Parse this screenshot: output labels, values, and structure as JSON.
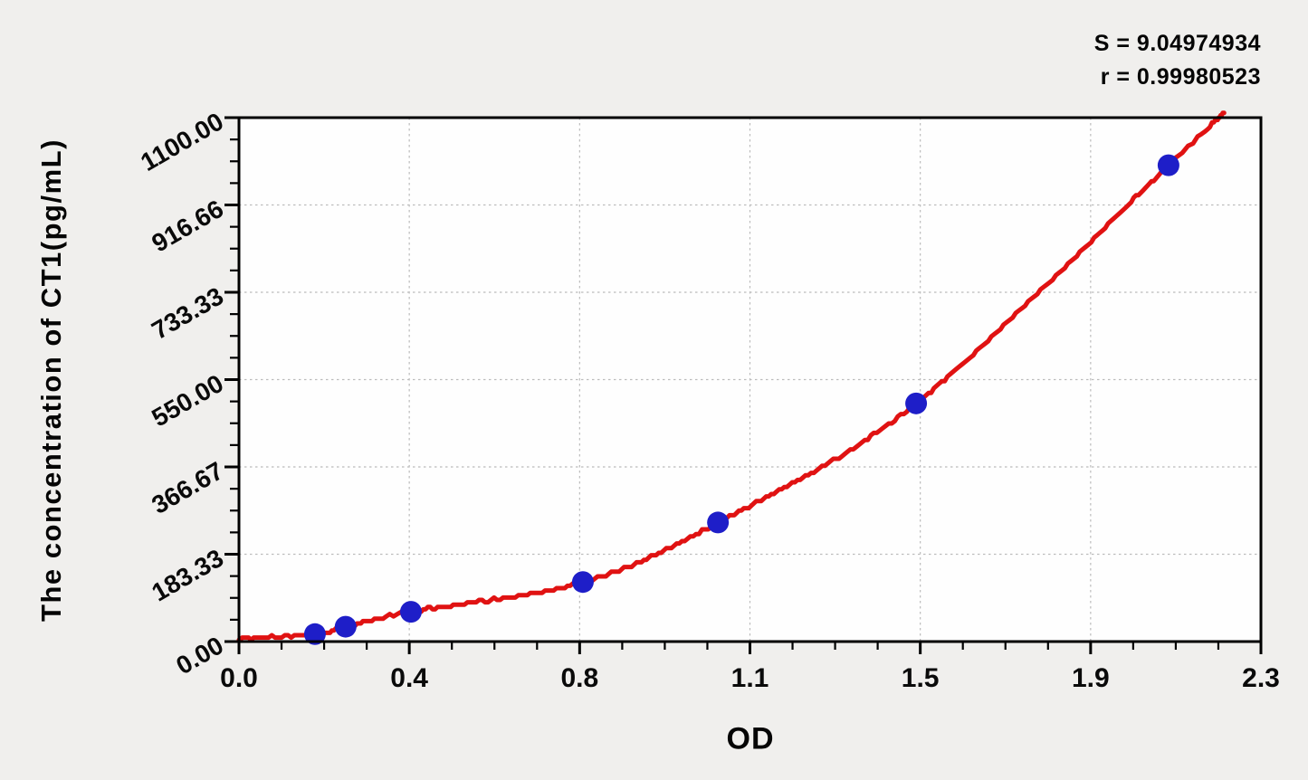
{
  "stats": {
    "s_line": "S = 9.04974934",
    "r_line": "r = 0.99980523"
  },
  "chart_data": {
    "type": "scatter",
    "title": "",
    "xlabel": "OD",
    "ylabel": "The concentration of CT1(pg/mL)",
    "xlim": [
      0,
      2.3
    ],
    "ylim": [
      0,
      1100
    ],
    "grid": true,
    "legend_position": "none",
    "x_ticks": {
      "values": [
        0,
        0.3833,
        0.7667,
        1.15,
        1.5333,
        1.9167,
        2.3
      ],
      "labels": [
        "0.0",
        "0.4",
        "0.8",
        "1.1",
        "1.5",
        "1.9",
        "2.3"
      ]
    },
    "y_ticks": {
      "values": [
        0,
        183.33,
        366.67,
        550,
        733.33,
        916.66,
        1100
      ],
      "labels": [
        "0.00",
        "183.33",
        "366.67",
        "550.00",
        "733.33",
        "916.66",
        "1100.00"
      ]
    },
    "minor_divisions": 4,
    "series": [
      {
        "name": "standard-points",
        "kind": "scatter",
        "color": "#1e1ec8",
        "marker_radius": 12,
        "points": [
          [
            0.171,
            15.6
          ],
          [
            0.24,
            31.2
          ],
          [
            0.387,
            62.5
          ],
          [
            0.774,
            125
          ],
          [
            1.078,
            250
          ],
          [
            1.524,
            500
          ],
          [
            2.092,
            1000
          ]
        ]
      },
      {
        "name": "fit-curve",
        "kind": "line",
        "color": "#e01212",
        "stroke_width": 5,
        "points": [
          [
            0,
            6
          ],
          [
            0.171,
            15.6
          ],
          [
            0.24,
            31.2
          ],
          [
            0.387,
            62.5
          ],
          [
            0.774,
            125
          ],
          [
            1.078,
            250
          ],
          [
            1.524,
            500
          ],
          [
            2.092,
            1000
          ],
          [
            2.217,
            1111
          ]
        ]
      }
    ],
    "colors": {
      "frame": "#000000",
      "grid": "#bcbcbc",
      "plot_background": "#fefefe",
      "canvas_background": "#f0efed"
    },
    "annotations": {
      "S": "9.04974934",
      "r": "0.99980523"
    }
  }
}
